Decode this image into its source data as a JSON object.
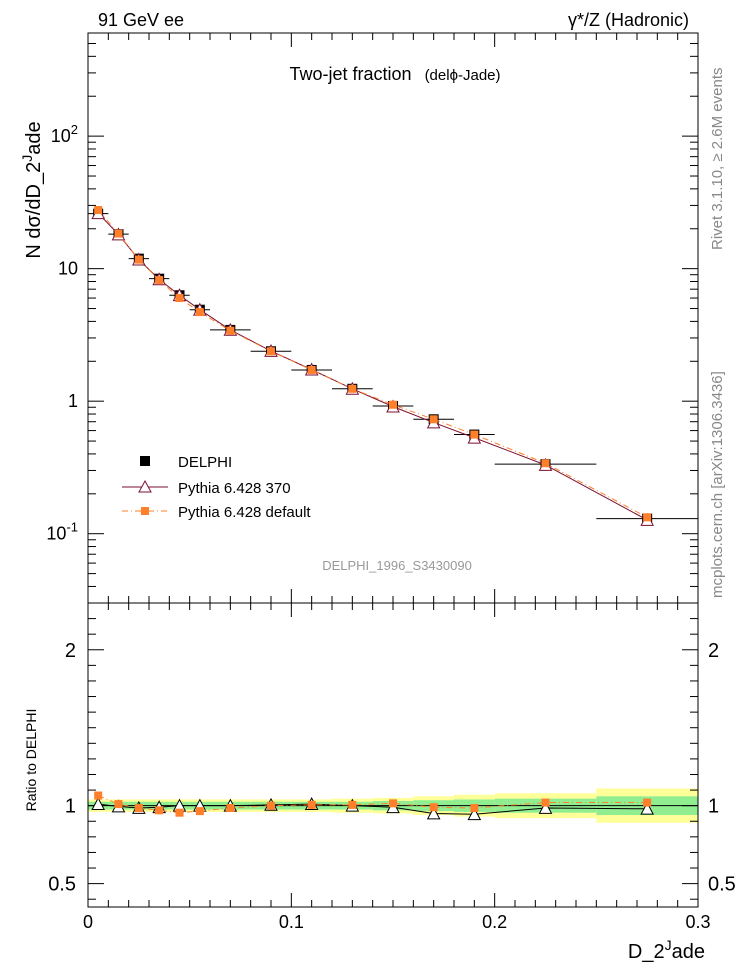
{
  "header": {
    "left": "91 GeV ee",
    "right": "γ*/Z (Hadronic)"
  },
  "side_text": {
    "rivet": "Rivet 3.1.10, ≥ 2.6M events",
    "mcplots": "mcplots.cern.ch [arXiv:1306.3436]"
  },
  "analysis_id": "DELPHI_1996_S3430090",
  "chart_data": [
    {
      "type": "line",
      "panel": "main",
      "title": "Two-jet fraction",
      "title_sub": "(delϕ-Jade)",
      "ylabel": "N dσ/dD_2^Jade",
      "yscale": "log",
      "xlim": [
        0,
        0.3
      ],
      "ylim": [
        0.03,
        600
      ],
      "x_ticks": [
        0,
        0.1,
        0.2,
        0.3
      ],
      "y_ticks": [
        {
          "value": 0.1,
          "label": "10^-1"
        },
        {
          "value": 1,
          "label": "1"
        },
        {
          "value": 10,
          "label": "10"
        },
        {
          "value": 100,
          "label": "10^2"
        }
      ],
      "legend_position": "lower-left",
      "x": [
        0.005,
        0.015,
        0.025,
        0.035,
        0.045,
        0.055,
        0.07,
        0.09,
        0.11,
        0.13,
        0.15,
        0.17,
        0.19,
        0.225,
        0.275
      ],
      "x_halfwidth": [
        0.005,
        0.005,
        0.005,
        0.005,
        0.005,
        0.005,
        0.01,
        0.01,
        0.01,
        0.01,
        0.01,
        0.01,
        0.01,
        0.025,
        0.025
      ],
      "series": [
        {
          "name": "DELPHI",
          "style": "data",
          "color": "#000000",
          "values": [
            26.0,
            18.2,
            11.9,
            8.4,
            6.3,
            4.9,
            3.45,
            2.38,
            1.72,
            1.24,
            0.92,
            0.73,
            0.56,
            0.335,
            0.13
          ]
        },
        {
          "name": "Pythia 6.428 370",
          "style": "line-triangle",
          "color": "#7a1030",
          "values": [
            26.2,
            18.1,
            11.7,
            8.3,
            6.3,
            4.9,
            3.45,
            2.39,
            1.73,
            1.24,
            0.91,
            0.69,
            0.53,
            0.33,
            0.127
          ]
        },
        {
          "name": "Pythia 6.428 default",
          "style": "dashdot-square",
          "color": "#ff7f2a",
          "values": [
            27.7,
            18.4,
            11.7,
            8.2,
            6.0,
            4.7,
            3.4,
            2.38,
            1.72,
            1.24,
            0.94,
            0.73,
            0.56,
            0.34,
            0.133
          ]
        }
      ]
    },
    {
      "type": "line",
      "panel": "ratio",
      "ylabel": "Ratio to DELPHI",
      "xlabel": "D_2^Jade",
      "xlim": [
        0,
        0.3
      ],
      "ylim": [
        0.35,
        2.3
      ],
      "x_ticks": [
        0,
        0.1,
        0.2,
        0.3
      ],
      "y_ticks": [
        0.5,
        1,
        2
      ],
      "x": [
        0.005,
        0.015,
        0.025,
        0.035,
        0.045,
        0.055,
        0.07,
        0.09,
        0.11,
        0.13,
        0.15,
        0.17,
        0.19,
        0.225,
        0.275
      ],
      "band_inner": [
        0.025,
        0.025,
        0.025,
        0.025,
        0.025,
        0.025,
        0.025,
        0.025,
        0.025,
        0.025,
        0.03,
        0.035,
        0.04,
        0.045,
        0.06
      ],
      "band_outer": [
        0.04,
        0.04,
        0.04,
        0.04,
        0.04,
        0.04,
        0.04,
        0.04,
        0.04,
        0.045,
        0.05,
        0.06,
        0.07,
        0.08,
        0.11
      ],
      "band_inner_color": "#90ee90",
      "band_outer_color": "#ffff99",
      "series": [
        {
          "name": "Pythia 6.428 370",
          "style": "line-triangle",
          "color": "#000000",
          "values": [
            1.01,
            0.995,
            0.985,
            0.99,
            1.0,
            1.0,
            1.0,
            1.005,
            1.01,
            1.0,
            0.99,
            0.95,
            0.945,
            0.985,
            0.98
          ]
        },
        {
          "name": "Pythia 6.428 default",
          "style": "dashdot-square",
          "color": "#ff7f2a",
          "values": [
            1.065,
            1.01,
            0.985,
            0.97,
            0.955,
            0.965,
            0.985,
            1.0,
            1.005,
            1.005,
            1.015,
            0.99,
            0.985,
            1.02,
            1.02
          ]
        }
      ]
    }
  ]
}
